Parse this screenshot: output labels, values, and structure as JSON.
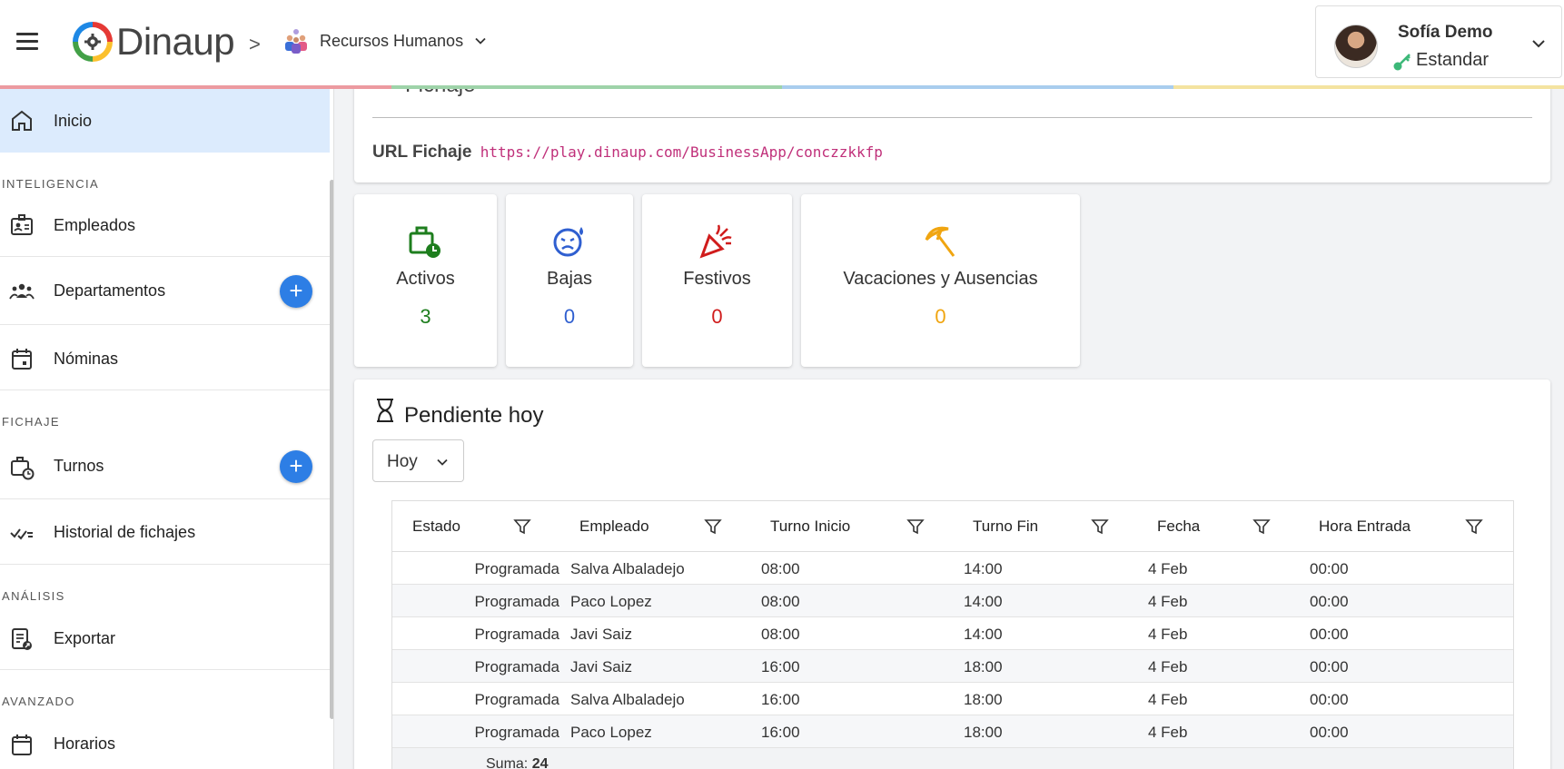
{
  "header": {
    "brand": "Dinaup",
    "breadcrumb_separator": ">",
    "module": "Recursos Humanos",
    "user": {
      "name": "Sofía Demo",
      "role": "Estandar"
    },
    "accent_line": [
      "#ec9aa0",
      "#9ed3a9",
      "#a9cdee",
      "#f4e3a0"
    ]
  },
  "sidebar": {
    "inicio": "Inicio",
    "sec_inteligencia": "INTELIGENCIA",
    "empleados": "Empleados",
    "departamentos": "Departamentos",
    "nominas": "Nóminas",
    "sec_fichaje": "FICHAJE",
    "turnos": "Turnos",
    "historial": "Historial de fichajes",
    "sec_analisis": "ANÁLISIS",
    "exportar": "Exportar",
    "sec_avanzado": "AVANZADO",
    "horarios": "Horarios",
    "plus": "+"
  },
  "fichaje": {
    "title": "Fichaje",
    "url_label": "URL Fichaje",
    "url_value": "https://play.dinaup.com/BusinessApp/conczzkkfp"
  },
  "stats": {
    "activos": {
      "label": "Activos",
      "value": "3",
      "color": "#1e7e1e"
    },
    "bajas": {
      "label": "Bajas",
      "value": "0",
      "color": "#2f5fd0"
    },
    "festivos": {
      "label": "Festivos",
      "value": "0",
      "color": "#d01c1c"
    },
    "vacaciones": {
      "label": "Vacaciones y Ausencias",
      "value": "0",
      "color": "#f0a510"
    }
  },
  "pendiente": {
    "title": "Pendiente hoy",
    "select_value": "Hoy",
    "columns": [
      "Estado",
      "Empleado",
      "Turno Inicio",
      "Turno Fin",
      "Fecha",
      "Hora Entrada"
    ],
    "rows": [
      {
        "estado": "Programada",
        "empleado": "Salva Albaladejo",
        "inicio": "08:00",
        "fin": "14:00",
        "fecha": "4 Feb",
        "entrada": "00:00"
      },
      {
        "estado": "Programada",
        "empleado": "Paco Lopez",
        "inicio": "08:00",
        "fin": "14:00",
        "fecha": "4 Feb",
        "entrada": "00:00"
      },
      {
        "estado": "Programada",
        "empleado": "Javi Saiz",
        "inicio": "08:00",
        "fin": "14:00",
        "fecha": "4 Feb",
        "entrada": "00:00"
      },
      {
        "estado": "Programada",
        "empleado": "Javi Saiz",
        "inicio": "16:00",
        "fin": "18:00",
        "fecha": "4 Feb",
        "entrada": "00:00"
      },
      {
        "estado": "Programada",
        "empleado": "Salva Albaladejo",
        "inicio": "16:00",
        "fin": "18:00",
        "fecha": "4 Feb",
        "entrada": "00:00"
      },
      {
        "estado": "Programada",
        "empleado": "Paco Lopez",
        "inicio": "16:00",
        "fin": "18:00",
        "fecha": "4 Feb",
        "entrada": "00:00"
      }
    ],
    "sum_label": "Suma:",
    "sum_value": "24"
  }
}
